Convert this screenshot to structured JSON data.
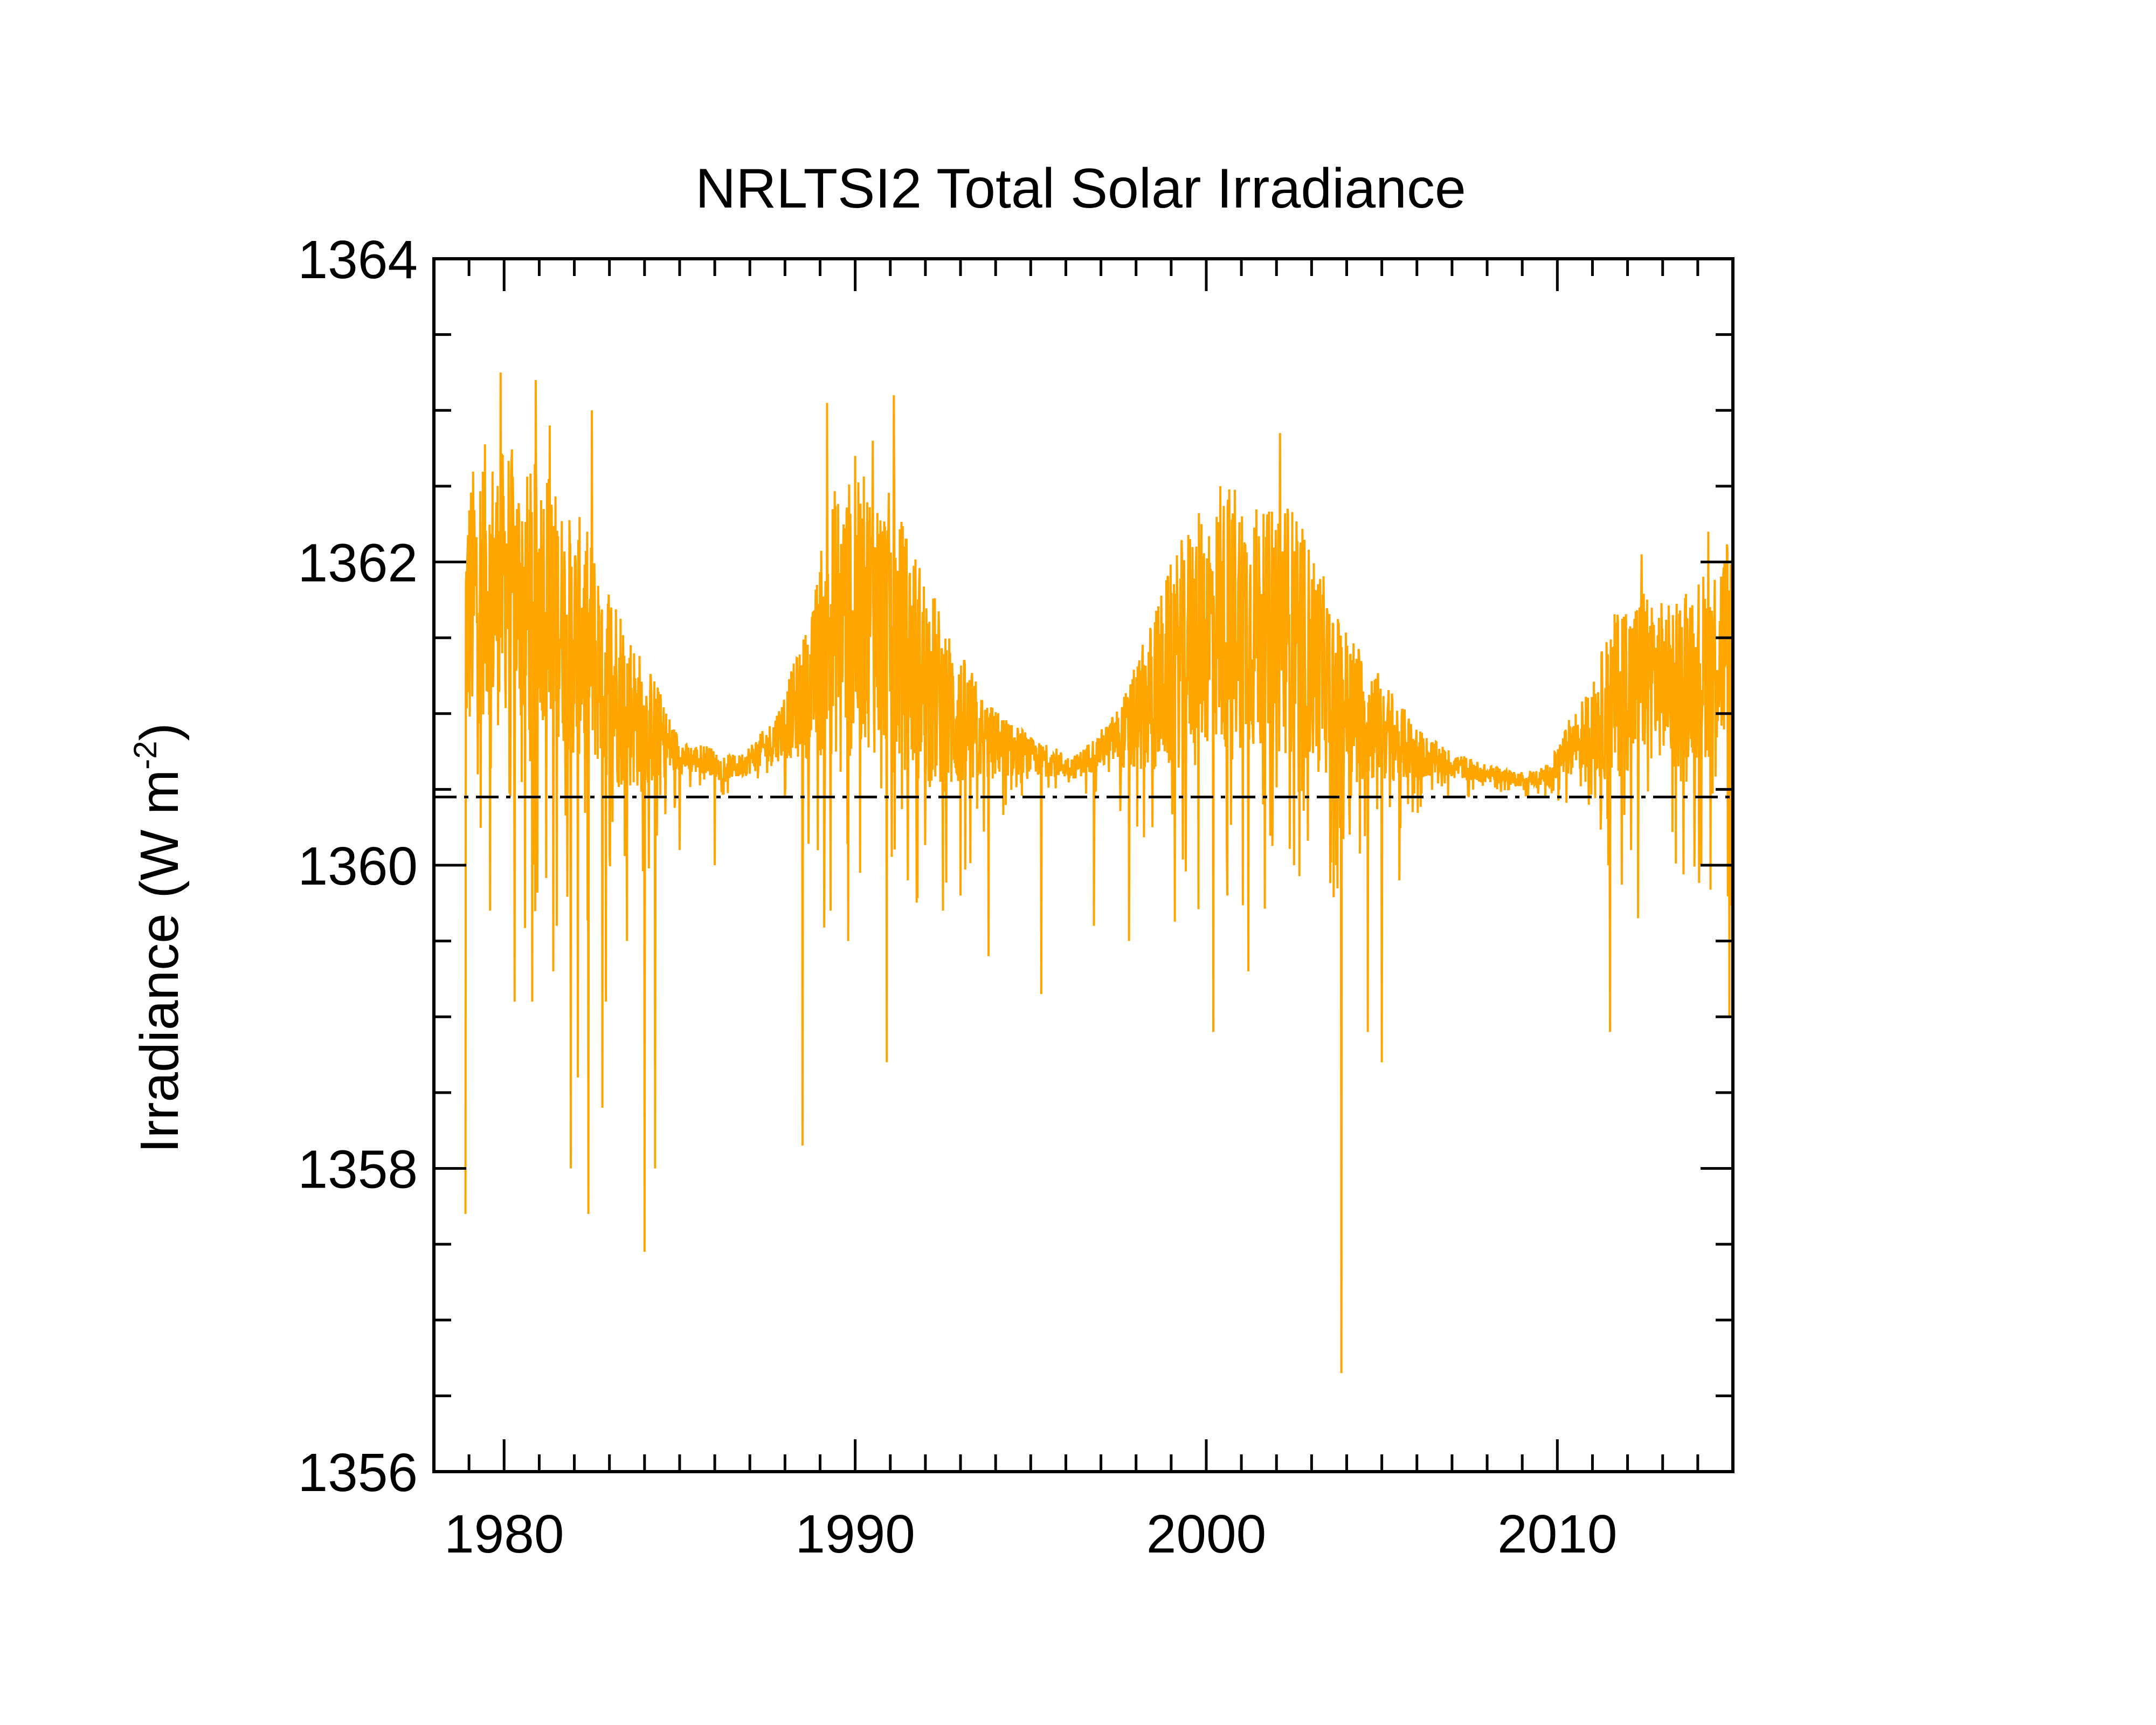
{
  "chart_data": {
    "type": "line",
    "title": "NRLTSI2 Total Solar Irradiance",
    "xlabel": "",
    "ylabel": "Irradiance (W m",
    "ylabel_superscript": "-2",
    "ylabel_suffix": ")",
    "xlim": [
      1978,
      2015
    ],
    "ylim": [
      1356,
      1364
    ],
    "xticks": [
      1980,
      1990,
      2000,
      2010
    ],
    "yticks": [
      1356,
      1358,
      1360,
      1362,
      1364
    ],
    "grid": false,
    "legend": "none",
    "reference_line": {
      "y": 1360.45,
      "style": "dash-dot",
      "color": "#000000"
    },
    "series": [
      {
        "color": "#FFA500",
        "x": [
          1978.9,
          1979.2,
          1979.5,
          1979.8,
          1980.1,
          1980.4,
          1980.7,
          1981.0,
          1981.3,
          1981.6,
          1981.9,
          1982.2,
          1982.5,
          1982.8,
          1983.1,
          1983.4,
          1983.7,
          1984.0,
          1984.3,
          1984.6,
          1984.9,
          1985.2,
          1985.5,
          1985.8,
          1986.1,
          1986.4,
          1986.7,
          1987.0,
          1987.3,
          1987.6,
          1987.9,
          1988.2,
          1988.5,
          1988.8,
          1989.1,
          1989.4,
          1989.7,
          1990.0,
          1990.3,
          1990.6,
          1990.9,
          1991.2,
          1991.5,
          1991.8,
          1992.1,
          1992.4,
          1992.7,
          1993.0,
          1993.3,
          1993.6,
          1993.9,
          1994.2,
          1994.5,
          1994.8,
          1995.1,
          1995.4,
          1995.7,
          1996.0,
          1996.3,
          1996.6,
          1996.9,
          1997.2,
          1997.5,
          1997.8,
          1998.1,
          1998.4,
          1998.7,
          1999.0,
          1999.3,
          1999.6,
          1999.9,
          2000.2,
          2000.5,
          2000.8,
          2001.1,
          2001.4,
          2001.7,
          2002.0,
          2002.3,
          2002.6,
          2002.9,
          2003.2,
          2003.5,
          2003.8,
          2004.1,
          2004.4,
          2004.7,
          2005.0,
          2005.3,
          2005.6,
          2005.9,
          2006.2,
          2006.5,
          2006.8,
          2007.1,
          2007.4,
          2007.7,
          2008.0,
          2008.3,
          2008.6,
          2008.9,
          2009.2,
          2009.5,
          2009.8,
          2010.1,
          2010.4,
          2010.7,
          2011.0,
          2011.3,
          2011.6,
          2011.9,
          2012.2,
          2012.5,
          2012.8,
          2013.1,
          2013.4,
          2013.7,
          2014.0,
          2014.3,
          2014.6,
          2014.9
        ],
        "mean": [
          1361.6,
          1361.8,
          1361.9,
          1361.8,
          1361.9,
          1361.8,
          1361.7,
          1361.8,
          1361.8,
          1361.6,
          1361.5,
          1361.5,
          1361.4,
          1361.3,
          1361.2,
          1361.1,
          1361.0,
          1360.9,
          1360.9,
          1360.8,
          1360.75,
          1360.7,
          1360.7,
          1360.7,
          1360.65,
          1360.65,
          1360.65,
          1360.7,
          1360.75,
          1360.8,
          1360.9,
          1361.0,
          1361.1,
          1361.2,
          1361.5,
          1361.6,
          1361.7,
          1361.6,
          1361.7,
          1361.6,
          1361.6,
          1361.5,
          1361.4,
          1361.3,
          1361.2,
          1361.1,
          1361.0,
          1360.95,
          1360.9,
          1360.85,
          1360.8,
          1360.8,
          1360.75,
          1360.75,
          1360.7,
          1360.7,
          1360.68,
          1360.65,
          1360.65,
          1360.7,
          1360.75,
          1360.8,
          1360.85,
          1360.9,
          1361.0,
          1361.1,
          1361.2,
          1361.3,
          1361.4,
          1361.5,
          1361.55,
          1361.6,
          1361.6,
          1361.7,
          1361.6,
          1361.55,
          1361.5,
          1361.6,
          1361.6,
          1361.5,
          1361.4,
          1361.3,
          1361.2,
          1361.1,
          1361.05,
          1361.0,
          1360.95,
          1360.9,
          1360.85,
          1360.8,
          1360.75,
          1360.72,
          1360.7,
          1360.68,
          1360.66,
          1360.64,
          1360.62,
          1360.6,
          1360.6,
          1360.58,
          1360.57,
          1360.57,
          1360.58,
          1360.6,
          1360.7,
          1360.8,
          1360.85,
          1360.9,
          1361.0,
          1361.1,
          1361.2,
          1361.2,
          1361.3,
          1361.25,
          1361.2,
          1361.25,
          1361.3,
          1361.3,
          1361.35,
          1361.4,
          1361.5
        ],
        "amplitude": [
          0.9,
          0.9,
          0.9,
          0.9,
          0.9,
          0.9,
          0.9,
          0.9,
          0.8,
          0.8,
          0.8,
          0.8,
          0.75,
          0.7,
          0.7,
          0.6,
          0.5,
          0.45,
          0.35,
          0.25,
          0.15,
          0.1,
          0.1,
          0.1,
          0.08,
          0.08,
          0.08,
          0.1,
          0.12,
          0.15,
          0.2,
          0.3,
          0.4,
          0.5,
          0.8,
          0.9,
          0.9,
          0.9,
          0.9,
          0.9,
          0.9,
          0.85,
          0.8,
          0.75,
          0.7,
          0.6,
          0.55,
          0.45,
          0.4,
          0.3,
          0.25,
          0.2,
          0.18,
          0.15,
          0.12,
          0.1,
          0.1,
          0.08,
          0.08,
          0.1,
          0.12,
          0.15,
          0.2,
          0.3,
          0.4,
          0.5,
          0.6,
          0.7,
          0.75,
          0.8,
          0.8,
          0.8,
          0.85,
          0.9,
          0.85,
          0.85,
          0.8,
          0.9,
          0.85,
          0.8,
          0.75,
          0.7,
          0.6,
          0.55,
          0.5,
          0.45,
          0.4,
          0.35,
          0.3,
          0.25,
          0.2,
          0.15,
          0.12,
          0.1,
          0.08,
          0.08,
          0.07,
          0.06,
          0.05,
          0.05,
          0.05,
          0.05,
          0.06,
          0.08,
          0.15,
          0.2,
          0.25,
          0.3,
          0.45,
          0.55,
          0.6,
          0.55,
          0.6,
          0.55,
          0.5,
          0.55,
          0.6,
          0.6,
          0.65,
          0.7,
          0.75
        ],
        "dips": [
          {
            "x": 1978.9,
            "y": 1357.7
          },
          {
            "x": 1979.6,
            "y": 1359.7
          },
          {
            "x": 1980.3,
            "y": 1359.1
          },
          {
            "x": 1980.8,
            "y": 1359.1
          },
          {
            "x": 1981.4,
            "y": 1359.3
          },
          {
            "x": 1981.5,
            "y": 1359.6
          },
          {
            "x": 1981.9,
            "y": 1358.0
          },
          {
            "x": 1982.1,
            "y": 1358.6
          },
          {
            "x": 1982.4,
            "y": 1357.7
          },
          {
            "x": 1982.8,
            "y": 1358.4
          },
          {
            "x": 1982.9,
            "y": 1359.1
          },
          {
            "x": 1983.5,
            "y": 1359.5
          },
          {
            "x": 1984.0,
            "y": 1357.45
          },
          {
            "x": 1984.3,
            "y": 1358.0
          },
          {
            "x": 1985.0,
            "y": 1360.1
          },
          {
            "x": 1986.0,
            "y": 1360.0
          },
          {
            "x": 1988.5,
            "y": 1358.15
          },
          {
            "x": 1989.3,
            "y": 1359.7
          },
          {
            "x": 1989.8,
            "y": 1359.5
          },
          {
            "x": 1990.5,
            "y": 1359.5
          },
          {
            "x": 1990.9,
            "y": 1358.7
          },
          {
            "x": 1991.1,
            "y": 1358.55
          },
          {
            "x": 1991.5,
            "y": 1359.9
          },
          {
            "x": 1992.5,
            "y": 1359.7
          },
          {
            "x": 1993.0,
            "y": 1359.8
          },
          {
            "x": 1993.8,
            "y": 1359.4
          },
          {
            "x": 1995.3,
            "y": 1359.15
          },
          {
            "x": 1996.8,
            "y": 1359.6
          },
          {
            "x": 1997.8,
            "y": 1359.5
          },
          {
            "x": 2000.2,
            "y": 1358.9
          },
          {
            "x": 2000.6,
            "y": 1359.8
          },
          {
            "x": 2001.2,
            "y": 1359.3
          },
          {
            "x": 2002.5,
            "y": 1360.0
          },
          {
            "x": 2003.7,
            "y": 1360.0
          },
          {
            "x": 2003.85,
            "y": 1356.65
          },
          {
            "x": 2004.6,
            "y": 1358.9
          },
          {
            "x": 2005.0,
            "y": 1358.7
          },
          {
            "x": 2005.5,
            "y": 1359.9
          },
          {
            "x": 2011.5,
            "y": 1358.9
          },
          {
            "x": 2012.1,
            "y": 1360.1
          },
          {
            "x": 2012.3,
            "y": 1359.65
          },
          {
            "x": 2014.1,
            "y": 1360.0
          },
          {
            "x": 2014.9,
            "y": 1359.0
          }
        ],
        "peaks": [
          {
            "x": 1979.9,
            "y": 1363.25
          },
          {
            "x": 1980.9,
            "y": 1363.2
          },
          {
            "x": 1981.3,
            "y": 1362.9
          },
          {
            "x": 1982.5,
            "y": 1363.0
          },
          {
            "x": 1989.2,
            "y": 1363.05
          },
          {
            "x": 1990.0,
            "y": 1362.7
          },
          {
            "x": 1990.5,
            "y": 1362.8
          },
          {
            "x": 1991.1,
            "y": 1363.1
          },
          {
            "x": 2000.4,
            "y": 1362.5
          },
          {
            "x": 2002.1,
            "y": 1362.85
          },
          {
            "x": 2012.4,
            "y": 1362.05
          },
          {
            "x": 2014.3,
            "y": 1362.2
          }
        ]
      }
    ]
  }
}
